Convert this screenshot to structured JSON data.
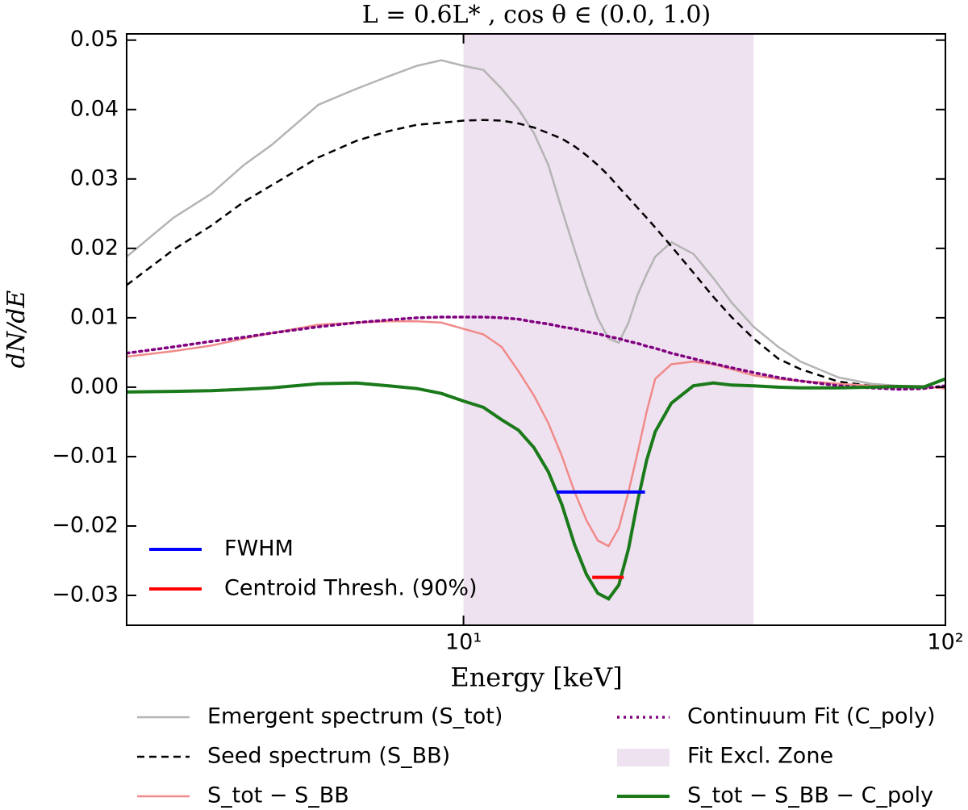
{
  "chart_data": {
    "type": "line",
    "title": "L = 0.6L* ,  cos θ ∈ (0.0, 1.0)",
    "x_label": "Energy [keV]",
    "y_label": "dN/dE",
    "xscale": "log",
    "xlim": [
      2,
      100
    ],
    "ylim": [
      -0.0343,
      0.0509
    ],
    "xticks": [
      {
        "value": 10,
        "label": "10¹"
      },
      {
        "value": 100,
        "label": "10²"
      }
    ],
    "yticks": [
      {
        "value": -0.03,
        "label": "−0.03"
      },
      {
        "value": -0.02,
        "label": "−0.02"
      },
      {
        "value": -0.01,
        "label": "−0.01"
      },
      {
        "value": 0,
        "label": "0.00"
      },
      {
        "value": 0.01,
        "label": "0.01"
      },
      {
        "value": 0.02,
        "label": "0.02"
      },
      {
        "value": 0.03,
        "label": "0.03"
      },
      {
        "value": 0.04,
        "label": "0.04"
      },
      {
        "value": 0.05,
        "label": "0.05"
      }
    ],
    "shaded_region": {
      "name": "Fit Excl. Zone",
      "x": [
        10,
        40
      ],
      "color": "#efe2f0"
    },
    "x": [
      2,
      2.5,
      3,
      3.5,
      4,
      5,
      6,
      7,
      8,
      9,
      10,
      11,
      12,
      13,
      14,
      15,
      16,
      17,
      18,
      19,
      20,
      21,
      22,
      23,
      24,
      25,
      27,
      30,
      33,
      36,
      40,
      45,
      50,
      60,
      70,
      80,
      90,
      100
    ],
    "series": [
      {
        "name": "Emergent spectrum (S_tot)",
        "color": "#b4b4b4",
        "style": "solid",
        "values": [
          0.0188,
          0.0244,
          0.0279,
          0.032,
          0.0349,
          0.0407,
          0.043,
          0.0448,
          0.0463,
          0.0471,
          0.0463,
          0.0457,
          0.043,
          0.0401,
          0.0366,
          0.032,
          0.0256,
          0.0198,
          0.0145,
          0.0099,
          0.007,
          0.0064,
          0.0093,
          0.0134,
          0.0163,
          0.0188,
          0.0209,
          0.0192,
          0.0157,
          0.0122,
          0.0087,
          0.0058,
          0.0037,
          0.0014,
          0.0005,
          0.0002,
          0.0002,
          -0.0002
        ]
      },
      {
        "name": "Seed spectrum (S_BB)",
        "color": "#000000",
        "style": "dashed",
        "values": [
          0.0147,
          0.0198,
          0.0233,
          0.0267,
          0.0291,
          0.0331,
          0.0355,
          0.0369,
          0.0378,
          0.0381,
          0.0384,
          0.0385,
          0.0384,
          0.038,
          0.0374,
          0.0366,
          0.0358,
          0.0347,
          0.0334,
          0.032,
          0.0305,
          0.0288,
          0.0273,
          0.0258,
          0.0244,
          0.023,
          0.0203,
          0.0165,
          0.013,
          0.0101,
          0.007,
          0.0041,
          0.0026,
          0.0008,
          0.0002,
          0,
          0,
          0
        ]
      },
      {
        "name": "S_tot − S_BB",
        "color": "#f08a8a",
        "style": "solid",
        "values": [
          0.0044,
          0.0052,
          0.006,
          0.007,
          0.0078,
          0.009,
          0.0093,
          0.0095,
          0.0095,
          0.0093,
          0.0084,
          0.0076,
          0.0058,
          0.0023,
          -0.0012,
          -0.0052,
          -0.0099,
          -0.0151,
          -0.0192,
          -0.0221,
          -0.0229,
          -0.0203,
          -0.0151,
          -0.0093,
          -0.0035,
          0.0012,
          0.0033,
          0.0037,
          0.0033,
          0.0026,
          0.0017,
          0.0012,
          0.0009,
          0.0005,
          0.0002,
          0.0002,
          0.0001,
          -0.0002
        ]
      },
      {
        "name": "Continuum Fit (C_poly)",
        "color": "#800080",
        "style": "dotted",
        "values": [
          0.0049,
          0.0058,
          0.0066,
          0.0072,
          0.0078,
          0.0087,
          0.0093,
          0.0097,
          0.01,
          0.0101,
          0.0101,
          0.0101,
          0.01,
          0.0098,
          0.0094,
          0.0091,
          0.0087,
          0.0084,
          0.008,
          0.0077,
          0.0073,
          0.007,
          0.0066,
          0.0063,
          0.0059,
          0.0056,
          0.0049,
          0.0041,
          0.0034,
          0.0028,
          0.0021,
          0.0014,
          0.0009,
          0.0002,
          -0.0001,
          -0.0003,
          -0.0002,
          0.0002
        ]
      },
      {
        "name": "S_tot − S_BB − C_poly",
        "color": "#1a7a1a",
        "style": "bold",
        "values": [
          -0.0007,
          -0.0006,
          -0.0005,
          -0.0003,
          -0.0001,
          0.0005,
          0.0006,
          0.0002,
          -0.0002,
          -0.0009,
          -0.002,
          -0.0029,
          -0.0047,
          -0.0062,
          -0.0087,
          -0.0122,
          -0.0169,
          -0.0227,
          -0.027,
          -0.0297,
          -0.0305,
          -0.0285,
          -0.0233,
          -0.0163,
          -0.0105,
          -0.0064,
          -0.0023,
          0.0002,
          0.0006,
          0.0003,
          0.0002,
          0,
          -0.0001,
          -0.0001,
          0,
          0.0001,
          0,
          0.0012
        ]
      }
    ],
    "markers": [
      {
        "name": "FWHM",
        "color": "#0000ff",
        "x": [
          15.6,
          23.8
        ],
        "values": [
          -0.0151,
          -0.0151
        ]
      },
      {
        "name": "Centroid Thresh. (90%)",
        "color": "#ff0000",
        "x": [
          18.5,
          21.5
        ],
        "values": [
          -0.0274,
          -0.0274
        ]
      }
    ]
  }
}
